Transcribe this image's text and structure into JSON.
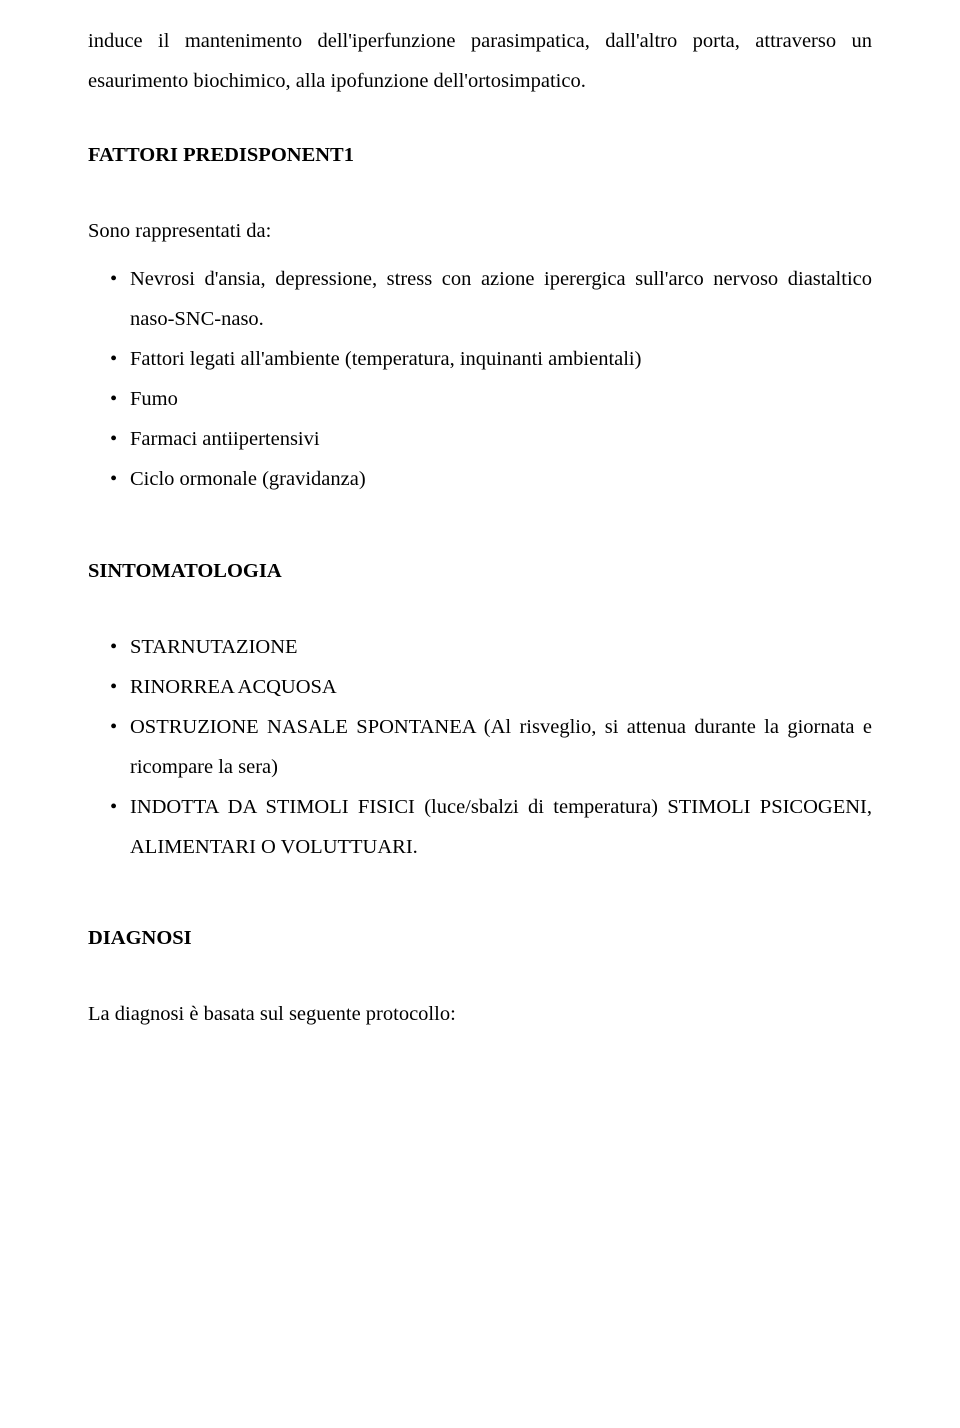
{
  "intro_para": "induce il mantenimento dell'iperfunzione parasimpatica, dall'altro porta, attraverso un esaurimento biochimico, alla ipofunzione dell'ortosimpatico.",
  "section1": {
    "heading": "FATTORI PREDISPONENT1",
    "intro": "Sono rappresentati da:",
    "items": [
      "Nevrosi d'ansia, depressione, stress con azione iperergica sull'arco nervoso diastaltico naso-SNC-naso.",
      "Fattori legati all'ambiente (temperatura,  inquinanti ambientali)",
      "Fumo",
      "Farmaci antiipertensivi",
      "Ciclo ormonale (gravidanza)"
    ]
  },
  "section2": {
    "heading": "SINTOMATOLOGIA",
    "items": [
      "STARNUTAZIONE",
      "RINORREA ACQUOSA",
      "OSTRUZIONE NASALE SPONTANEA (Al risveglio, si attenua durante la giornata e ricompare la sera)",
      "INDOTTA DA STIMOLI FISICI (luce/sbalzi di temperatura) STIMOLI PSICOGENI, ALIMENTARI O VOLUTTUARI."
    ]
  },
  "section3": {
    "heading": "DIAGNOSI",
    "final": "La diagnosi è basata sul seguente protocollo:"
  }
}
